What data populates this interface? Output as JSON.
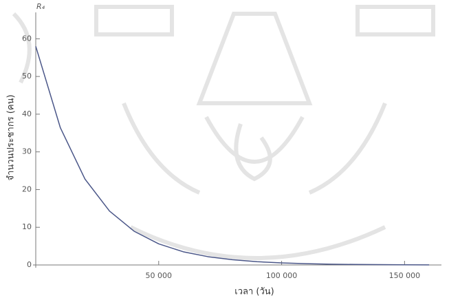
{
  "chart_data": {
    "type": "line",
    "y_symbol": "R₄",
    "xlabel": "เวลา (วัน)",
    "ylabel": "จำนวนประชากร (คน)",
    "x": [
      0,
      10000,
      20000,
      30000,
      40000,
      50000,
      60000,
      70000,
      80000,
      90000,
      100000,
      110000,
      120000,
      130000,
      140000,
      150000,
      160000
    ],
    "values": [
      58,
      36.4,
      22.8,
      14.3,
      8.95,
      5.6,
      3.5,
      2.2,
      1.4,
      0.87,
      0.54,
      0.34,
      0.21,
      0.13,
      0.08,
      0.05,
      0.03
    ],
    "color": "#4a5688",
    "xlim": [
      0,
      165000
    ],
    "ylim": [
      0,
      67
    ],
    "xticks": [
      {
        "value": 50000,
        "label": "50 000"
      },
      {
        "value": 100000,
        "label": "100 000"
      },
      {
        "value": 150000,
        "label": "150 000"
      }
    ],
    "yticks": [
      0,
      10,
      20,
      30,
      40,
      50,
      60
    ],
    "grid": false
  }
}
